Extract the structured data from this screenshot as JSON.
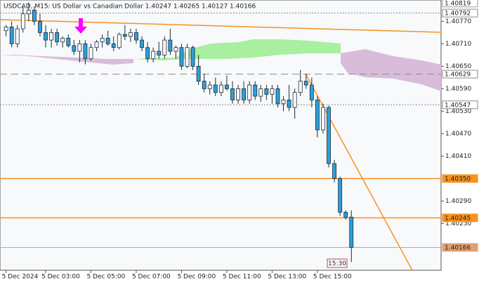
{
  "chart_data": {
    "type": "candlestick",
    "title": "USDCAD, M15:  US Dollar vs Canadian Dollar  1.40247 1.40265 1.40127 1.40166",
    "categories": [
      "5 Dec 2024",
      null,
      null,
      null,
      null,
      null,
      null,
      "5 Dec 03:00",
      null,
      null,
      null,
      null,
      null,
      null,
      null,
      "5 Dec 05:00",
      null,
      null,
      null,
      null,
      null,
      null,
      null,
      "5 Dec 07:00",
      null,
      null,
      null,
      null,
      null,
      null,
      null,
      "5 Dec 09:00",
      null,
      null,
      null,
      null,
      null,
      null,
      null,
      "5 Dec 11:00",
      null,
      null,
      null,
      null,
      null,
      null,
      null,
      "5 Dec 13:00",
      null,
      null,
      null,
      null,
      null,
      null,
      null,
      "5 Dec 15:00",
      null,
      null,
      null,
      null,
      null,
      null
    ],
    "open": [
      1.40745,
      1.40755,
      1.4071,
      1.4075,
      1.4079,
      1.408,
      1.4077,
      1.4074,
      1.4072,
      1.4074,
      1.40715,
      1.40725,
      1.40705,
      1.4069,
      1.4071,
      1.4067,
      1.407,
      1.40715,
      1.40725,
      1.4071,
      1.407,
      1.40735,
      1.4073,
      1.4074,
      1.4072,
      1.407,
      1.4067,
      1.4069,
      1.4068,
      1.4072,
      1.4069,
      1.407,
      1.4065,
      1.407,
      1.4065,
      1.4061,
      1.4059,
      1.406,
      1.4058,
      1.406,
      1.4059,
      1.4056,
      1.4059,
      1.4056,
      1.406,
      1.4057,
      1.4059,
      1.40575,
      1.4059,
      1.4055,
      1.4056,
      1.4054,
      1.4058,
      1.4061,
      1.406,
      1.4056,
      1.4048,
      1.4054,
      1.4039,
      1.4035,
      1.4026,
      1.40247
    ],
    "high": [
      1.4076,
      1.4077,
      1.4076,
      1.4081,
      1.4082,
      1.4081,
      1.4079,
      1.4076,
      1.4075,
      1.4075,
      1.4073,
      1.40735,
      1.4072,
      1.4072,
      1.4072,
      1.4071,
      1.4072,
      1.40735,
      1.40745,
      1.4073,
      1.4074,
      1.4076,
      1.4075,
      1.4075,
      1.4073,
      1.40715,
      1.407,
      1.40715,
      1.4073,
      1.4075,
      1.40705,
      1.4071,
      1.4071,
      1.40705,
      1.4068,
      1.4063,
      1.4061,
      1.4062,
      1.4061,
      1.40625,
      1.4061,
      1.406,
      1.4061,
      1.4061,
      1.4061,
      1.406,
      1.406,
      1.406,
      1.406,
      1.4057,
      1.406,
      1.4059,
      1.4064,
      1.4063,
      1.4062,
      1.4057,
      1.4055,
      1.40545,
      1.404,
      1.40355,
      1.40265,
      1.40265
    ],
    "low": [
      1.4073,
      1.407,
      1.407,
      1.4074,
      1.4077,
      1.4076,
      1.4073,
      1.407,
      1.407,
      1.40705,
      1.407,
      1.407,
      1.4068,
      1.4066,
      1.40655,
      1.40665,
      1.4069,
      1.407,
      1.40705,
      1.4069,
      1.40695,
      1.4072,
      1.40715,
      1.4071,
      1.4069,
      1.4066,
      1.4066,
      1.4067,
      1.4067,
      1.4068,
      1.4067,
      1.4064,
      1.40645,
      1.4064,
      1.406,
      1.4058,
      1.40575,
      1.4057,
      1.4057,
      1.40585,
      1.4055,
      1.4055,
      1.4055,
      1.4055,
      1.4056,
      1.40555,
      1.4056,
      1.4055,
      1.4054,
      1.4053,
      1.4053,
      1.4051,
      1.4057,
      1.4059,
      1.4054,
      1.4046,
      1.4047,
      1.4038,
      1.4034,
      1.4025,
      1.4024,
      1.40127
    ],
    "close": [
      1.40755,
      1.4071,
      1.4075,
      1.4079,
      1.408,
      1.4077,
      1.4074,
      1.4072,
      1.4074,
      1.40715,
      1.40725,
      1.40705,
      1.4069,
      1.4071,
      1.4067,
      1.407,
      1.40715,
      1.40725,
      1.4071,
      1.407,
      1.40735,
      1.4073,
      1.4074,
      1.4072,
      1.407,
      1.4067,
      1.4069,
      1.4068,
      1.4072,
      1.4069,
      1.407,
      1.4065,
      1.407,
      1.4065,
      1.4061,
      1.4059,
      1.406,
      1.4058,
      1.406,
      1.4059,
      1.4056,
      1.4059,
      1.4056,
      1.406,
      1.4057,
      1.4059,
      1.40575,
      1.4059,
      1.4055,
      1.4056,
      1.4054,
      1.4058,
      1.4061,
      1.406,
      1.4056,
      1.4048,
      1.4054,
      1.4039,
      1.4035,
      1.4026,
      1.40247,
      1.40166
    ],
    "up_color": "#ffffff",
    "down_color": "#2e9fd8",
    "outline_color": "#1b2a38",
    "ylim": [
      1.40105,
      1.40827
    ],
    "yticks": [
      {
        "value": 1.4077,
        "label": "1.40770"
      },
      {
        "value": 1.4071,
        "label": "1.40710"
      },
      {
        "value": 1.4065,
        "label": "1.40650"
      },
      {
        "value": 1.4059,
        "label": "1.40590"
      },
      {
        "value": 1.4053,
        "label": "1.40530"
      },
      {
        "value": 1.4047,
        "label": "1.40470"
      },
      {
        "value": 1.4041,
        "label": "1.40410"
      },
      {
        "value": 1.4029,
        "label": "1.40290"
      },
      {
        "value": 1.4023,
        "label": "1.40230"
      }
    ],
    "levels": [
      {
        "value": 1.40819,
        "label": "1.40819",
        "line": "none",
        "color": "#9a9a9a"
      },
      {
        "value": 1.40792,
        "label": "1.40792",
        "line": "dotted",
        "color": "#8a8a8a"
      },
      {
        "value": 1.40629,
        "label": "1.40629",
        "line": "dashed",
        "color": "#8a8a8a"
      },
      {
        "value": 1.40547,
        "label": "1.40547",
        "line": "dotted",
        "color": "#8a8a8a"
      },
      {
        "value": 1.4035,
        "label": "1.40350",
        "line": "solid",
        "color": "#f7931e"
      },
      {
        "value": 1.40245,
        "label": "1.40245",
        "line": "solid",
        "color": "#f7931e"
      },
      {
        "value": 1.40166,
        "label": "1.40166",
        "line": "thin",
        "color": "#e0a070"
      }
    ],
    "cursor_label": "15:30"
  }
}
